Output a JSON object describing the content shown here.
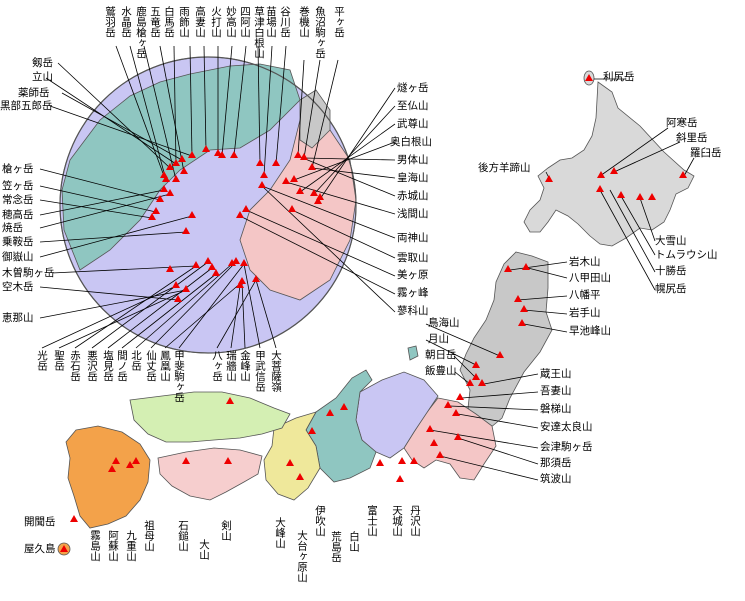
{
  "map": {
    "colors": {
      "hokkaido": "#d9d9d9",
      "tohoku": "#c8c8c8",
      "kanto": "#f4c6c6",
      "chubu_central": "#c9c6f3",
      "hokuriku": "#8fc6c1",
      "kinki": "#efe89b",
      "chugoku": "#d4efb3",
      "shikoku": "#f6cece",
      "kyushu": "#f3a24a",
      "peak_marker": "#ee0000"
    },
    "labels": {
      "rishiri": "利尻岳",
      "akan": "阿寒岳",
      "shari": "斜里岳",
      "rausu": "羅臼岳",
      "shiribeshi": "後方羊蹄山",
      "taisetsu": "大雪山",
      "tomuraushi": "トムラウシ山",
      "tokachi": "十勝岳",
      "poroshiri": "幌尻岳",
      "iwaki": "岩木山",
      "hakkoda": "八甲田山",
      "hachimantai": "八幡平",
      "iwate": "岩手山",
      "hayachine": "早池峰山",
      "chokai": "鳥海山",
      "gassan": "月山",
      "asahi": "朝日岳",
      "iide": "飯豊山",
      "zao": "蔵王山",
      "azuma": "吾妻山",
      "bandai": "磐梯山",
      "adatara": "安達太良山",
      "aizukoma": "会津駒ヶ岳",
      "nasu": "那須岳",
      "tsukuba": "筑波山",
      "hiuchi": "燧ヶ岳",
      "shibutsu": "至仏山",
      "buson": "武尊山",
      "okushirane": "奥白根山",
      "nantai": "男体山",
      "sukai": "皇海山",
      "akagi": "赤城山",
      "asama": "浅間山",
      "ryokami": "両神山",
      "kumotori": "雲取山",
      "utsukushigahara": "美ヶ原",
      "kirigamine": "霧ヶ峰",
      "tateshina": "蓼科山",
      "tsurugi": "剱岳",
      "tate": "立山",
      "yakushi": "薬師岳",
      "kurobegoro": "黒部五郎岳",
      "yari": "槍ヶ岳",
      "kasa": "笠ヶ岳",
      "jonen": "常念岳",
      "hotaka": "穂高岳",
      "yake": "焼岳",
      "norikura": "乗鞍岳",
      "ontake": "御嶽山",
      "kisokoma": "木曽駒ヶ岳",
      "utsugi": "空木岳",
      "ena": "恵那山",
      "washiba": "鷲羽岳",
      "suisho": "水晶岳",
      "kashimayari": "鹿島槍ヶ岳",
      "goryu": "五竜岳",
      "shirouma": "白馬岳",
      "amakazari": "雨飾山",
      "takatsuma": "高妻山",
      "hiuchi_north": "火打山",
      "myoko": "妙高山",
      "shiashi": "四阿山",
      "kusatsushirane": "草津白根山",
      "naeba": "苗場山",
      "tanigawa": "谷川岳",
      "makihata": "巻機山",
      "uonuma": "魚沼駒ヶ岳",
      "hiraga": "平ヶ岳",
      "hijiri": "光岳",
      "seikou": "聖岳",
      "akaishi": "赤石岳",
      "warusawa": "悪沢岳",
      "shiomi": "塩見岳",
      "ainodake": "間ノ岳",
      "kitadake": "北岳",
      "senjo": "仙丈岳",
      "hoo": "鳳凰山",
      "kaikoma": "甲斐駒ヶ岳",
      "yatsu": "八ヶ岳",
      "mizugaki": "瑞牆山",
      "kinpu": "金峰山",
      "kobushi": "甲武信岳",
      "daibosatsu": "大菩薩嶺",
      "fuji": "富士山",
      "amagi": "天城山",
      "tanzawa": "丹沢山",
      "hakusan": "白山",
      "arashima": "荒島岳",
      "ibuki": "伊吹山",
      "odaigahara": "大台ヶ原山",
      "omine": "大峰山",
      "daisen": "大山",
      "tsurugisan": "剣山",
      "ishizuchi": "石鎚山",
      "sobo": "祖母山",
      "kuju": "九重山",
      "aso": "阿蘇山",
      "kirishima": "霧島山",
      "kaimon": "開聞岳",
      "miyanoura": "屋久島"
    }
  }
}
